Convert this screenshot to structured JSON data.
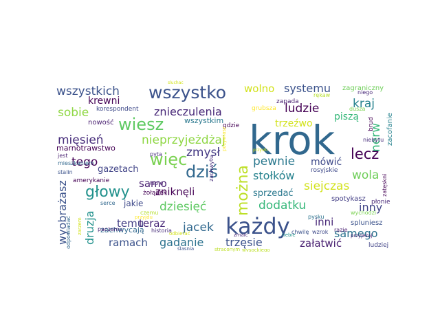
{
  "cloud": {
    "words": [
      {
        "text": "krok",
        "color": "#31688e"
      },
      {
        "text": "każdy",
        "color": "#3b528b"
      },
      {
        "text": "wszystko",
        "color": "#3b528b"
      },
      {
        "text": "wszystkich",
        "color": "#3b528b"
      },
      {
        "text": "wiesz",
        "color": "#5ec962"
      },
      {
        "text": "więc",
        "color": "#7ad151"
      },
      {
        "text": "głowy",
        "color": "#21918c"
      },
      {
        "text": "dziś",
        "color": "#31688e"
      },
      {
        "text": "można",
        "color": "#bddf26"
      },
      {
        "text": "lecz",
        "color": "#440154"
      },
      {
        "text": "mięsień",
        "color": "#472d7b"
      },
      {
        "text": "nieprzyjeżdżaj",
        "color": "#8fd744"
      },
      {
        "text": "znieczulenia",
        "color": "#482878"
      },
      {
        "text": "sobie",
        "color": "#8fd744"
      },
      {
        "text": "krewni",
        "color": "#440154"
      },
      {
        "text": "wolno",
        "color": "#d2e21b"
      },
      {
        "text": "systemu",
        "color": "#3b528b"
      },
      {
        "text": "ludzie",
        "color": "#440154"
      },
      {
        "text": "kraj",
        "color": "#26828e"
      },
      {
        "text": "zmysł",
        "color": "#443983"
      },
      {
        "text": "tego",
        "color": "#440154"
      },
      {
        "text": "trzeźwo",
        "color": "#d2e21b"
      },
      {
        "text": "piszą",
        "color": "#35b779"
      },
      {
        "text": "nerw",
        "color": "#35b779"
      },
      {
        "text": "pewnie",
        "color": "#2a788e"
      },
      {
        "text": "stołków",
        "color": "#26828e"
      },
      {
        "text": "wola",
        "color": "#6ece58"
      },
      {
        "text": "siejczas",
        "color": "#d2e21b"
      },
      {
        "text": "mówić",
        "color": "#3e4989"
      },
      {
        "text": "dodatku",
        "color": "#35b779"
      },
      {
        "text": "inny",
        "color": "#414487"
      },
      {
        "text": "dziesięć",
        "color": "#5ec962"
      },
      {
        "text": "samo",
        "color": "#481f70"
      },
      {
        "text": "zniknęli",
        "color": "#440154"
      },
      {
        "text": "teraz",
        "color": "#482878"
      },
      {
        "text": "temu",
        "color": "#433e85"
      },
      {
        "text": "jacek",
        "color": "#31688e"
      },
      {
        "text": "inni",
        "color": "#482878"
      },
      {
        "text": "samego",
        "color": "#2c728e"
      },
      {
        "text": "ramach",
        "color": "#3b528b"
      },
      {
        "text": "gadanie",
        "color": "#2c728e"
      },
      {
        "text": "trzęsie",
        "color": "#3b528b"
      },
      {
        "text": "załatwić",
        "color": "#481f70"
      },
      {
        "text": "druzja",
        "color": "#21918c"
      },
      {
        "text": "wyobrażasz",
        "color": "#3b528b"
      },
      {
        "text": "gazetach",
        "color": "#414487"
      },
      {
        "text": "sprzedać",
        "color": "#2a788e"
      },
      {
        "text": "jakie",
        "color": "#3e4989"
      },
      {
        "text": "zachwycają",
        "color": "#31688e"
      },
      {
        "text": "marnotrawstwo",
        "color": "#440154"
      },
      {
        "text": "korespondent",
        "color": "#3e4989"
      },
      {
        "text": "wszystkim",
        "color": "#2a788e"
      },
      {
        "text": "nowość",
        "color": "#481f70"
      },
      {
        "text": "amerykanie",
        "color": "#440154"
      },
      {
        "text": "żołądek",
        "color": "#440154"
      },
      {
        "text": "zagraniczny",
        "color": "#6ece58"
      },
      {
        "text": "zapada",
        "color": "#481f70"
      },
      {
        "text": "gdzie",
        "color": "#440154"
      },
      {
        "text": "spotykasz",
        "color": "#433e85"
      },
      {
        "text": "spluniesz",
        "color": "#3b528b"
      },
      {
        "text": "ludziej",
        "color": "#414487"
      },
      {
        "text": "rosyjskie",
        "color": "#3e4989"
      },
      {
        "text": "płonie",
        "color": "#482878"
      },
      {
        "text": "serce",
        "color": "#31688e"
      },
      {
        "text": "paczemu",
        "color": "#482878"
      },
      {
        "text": "historia",
        "color": "#472d7b"
      },
      {
        "text": "stalin",
        "color": "#3b528b"
      },
      {
        "text": "jest",
        "color": "#481f70"
      },
      {
        "text": "odpowiadać",
        "color": "#31688e"
      },
      {
        "text": "mieszkaniem",
        "color": "#31688e"
      },
      {
        "text": "pyta",
        "color": "#472d7b"
      },
      {
        "text": "czemu",
        "color": "#b5de2b"
      },
      {
        "text": "łapie",
        "color": "#481f70"
      },
      {
        "text": "zachwytu",
        "color": "#472d7b"
      },
      {
        "text": "grubsza",
        "color": "#fde725"
      },
      {
        "text": "brud",
        "color": "#440154"
      },
      {
        "text": "zacofanie",
        "color": "#26828e"
      },
      {
        "text": "niebytu",
        "color": "#472d7b"
      },
      {
        "text": "dusza",
        "color": "#7ad151"
      },
      {
        "text": "niego",
        "color": "#482878"
      },
      {
        "text": "rękaw",
        "color": "#b5de2b"
      },
      {
        "text": "wychodzi",
        "color": "#7ad151"
      },
      {
        "text": "zatęskni",
        "color": "#440154"
      },
      {
        "text": "pysku",
        "color": "#2c728e"
      },
      {
        "text": "wzrok",
        "color": "#3e4989"
      },
      {
        "text": "chwilę",
        "color": "#3b528b"
      },
      {
        "text": "razie",
        "color": "#481f70"
      },
      {
        "text": "przyjeżaj",
        "color": "#481f70"
      },
      {
        "text": "zmaic",
        "color": "#482878"
      },
      {
        "text": "ślasnia",
        "color": "#3b528b"
      },
      {
        "text": "straconym",
        "color": "#bddf26"
      },
      {
        "text": "wysockiego",
        "color": "#bddf26"
      },
      {
        "text": "tiebie",
        "color": "#21918c"
      },
      {
        "text": "odbierać",
        "color": "#d2e21b"
      },
      {
        "text": "pozywiasz",
        "color": "#fde725"
      },
      {
        "text": "przysłu",
        "color": "#d2e21b"
      },
      {
        "text": "przyjdu",
        "color": "#fde725"
      },
      {
        "text": "zarzem",
        "color": "#d2e21b"
      },
      {
        "text": "sluchac",
        "color": "#d2e21b"
      }
    ]
  }
}
